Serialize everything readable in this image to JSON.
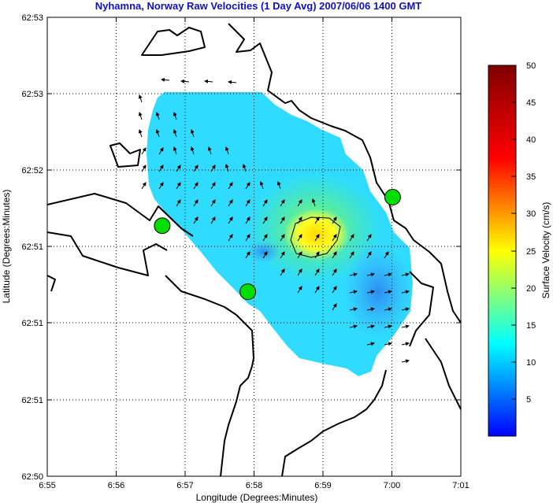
{
  "chart_data": {
    "type": "heatmap",
    "title": "Nyhamna, Norway Raw Velocities (1 Day Avg) 2007/06/06 1400 GMT",
    "xlabel": "Longitude (Degrees:Minutes)",
    "ylabel": "Latitude (Degrees:Minutes)",
    "x_ticks": [
      "6:55",
      "6:56",
      "6:57",
      "6:58",
      "6:59",
      "7:00",
      "7:01"
    ],
    "y_ticks": [
      "62:50",
      "62:51",
      "62:51",
      "62:51",
      "62:52",
      "62:53",
      "62:53"
    ],
    "grid": true,
    "xlim": [
      6.9167,
      7.0167
    ],
    "ylim": [
      62.83,
      62.88
    ],
    "colorbar": {
      "label": "Surface Velocity (cm/s)",
      "range": [
        0,
        50
      ],
      "ticks": [
        "5",
        "10",
        "15",
        "20",
        "25",
        "30",
        "35",
        "40",
        "45",
        "50"
      ],
      "colormap": "jet"
    },
    "speed_contour_cm_s": 25,
    "max_speed_region": {
      "lon": 6.9817,
      "lat": 62.8599,
      "value": 30
    },
    "sites": [
      {
        "name": "",
        "lon": 6.9445,
        "lat": 62.8573,
        "color": "#00dd00"
      },
      {
        "name": "",
        "lon": 6.9652,
        "lat": 62.8501,
        "color": "#00dd00"
      },
      {
        "name": "",
        "lon": 7.0002,
        "lat": 62.8604,
        "color": "#00dd00"
      }
    ]
  }
}
